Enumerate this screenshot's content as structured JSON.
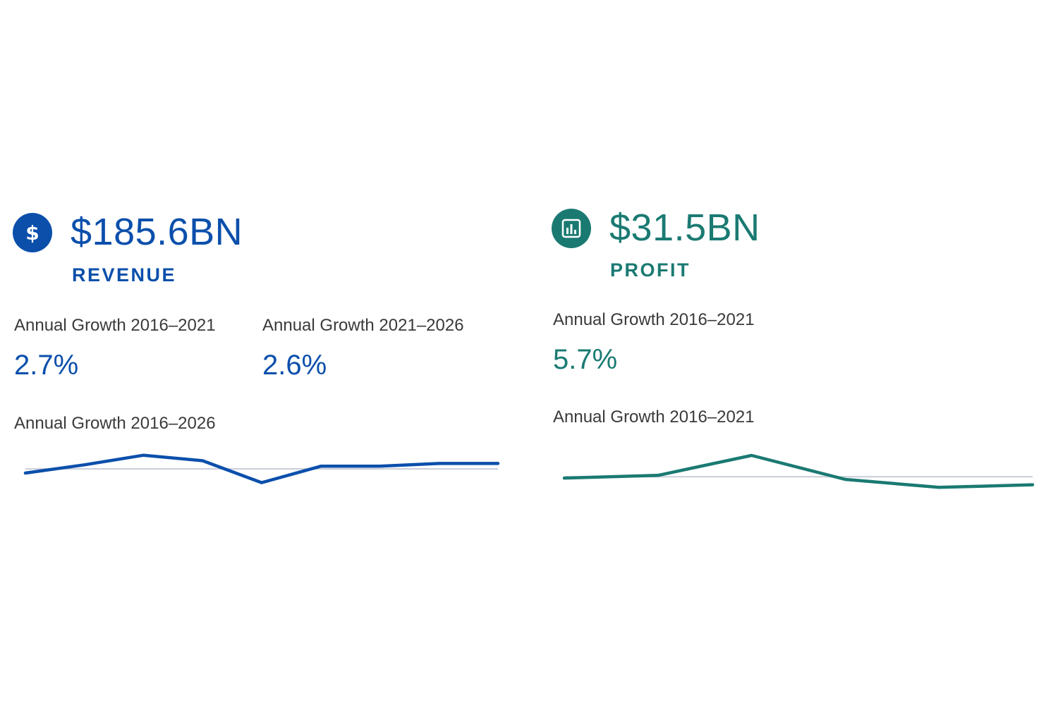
{
  "cards": {
    "revenue": {
      "icon": "dollar-icon",
      "accent": "#0b4fab",
      "value": "$185.6BN",
      "label": "REVENUE",
      "stats": [
        {
          "label": "Annual Growth 2016–2021",
          "value": "2.7%"
        },
        {
          "label": "Annual Growth 2021–2026",
          "value": "2.6%"
        }
      ],
      "chart_title": "Annual Growth 2016–2026"
    },
    "profit": {
      "icon": "bar-chart-icon",
      "accent": "#1a7a72",
      "value": "$31.5BN",
      "label": "PROFIT",
      "stats": [
        {
          "label": "Annual Growth 2016–2021",
          "value": "5.7%"
        }
      ],
      "chart_title": "Annual Growth 2016–2021"
    }
  },
  "chart_data": [
    {
      "type": "line",
      "title": "Annual Growth 2016–2026",
      "series": [
        {
          "name": "Revenue growth",
          "values": [
            -0.3,
            0.3,
            1.0,
            0.6,
            -1.0,
            0.2,
            0.2,
            0.4,
            0.4
          ]
        }
      ],
      "baseline": 0,
      "ylim": [
        -2.0,
        1.5
      ],
      "grid": false,
      "color": "#0b4fab"
    },
    {
      "type": "line",
      "title": "Annual Growth 2016–2021",
      "series": [
        {
          "name": "Profit growth",
          "values": [
            -0.1,
            0.1,
            1.6,
            -0.2,
            -0.8,
            -0.6
          ]
        }
      ],
      "baseline": 0,
      "ylim": [
        -2.0,
        1.6
      ],
      "grid": false,
      "color": "#1a7a72"
    }
  ]
}
